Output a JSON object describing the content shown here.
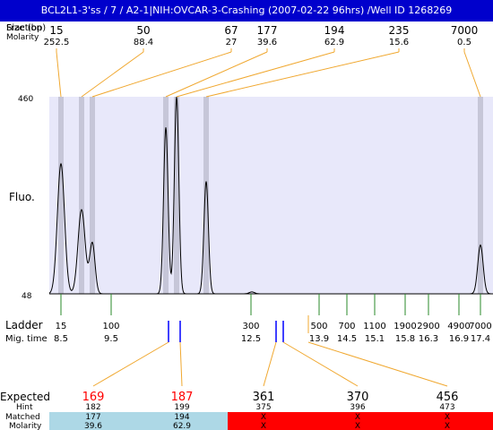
{
  "title": "BCL2L1-3'ss / 7 / A2-1|NIH:OVCAR-3-Crashing (2007-02-22 96hrs) /Well ID 1268269",
  "top_rows": {
    "label_1": "Fraction",
    "label_1b": "Size (bp)",
    "label_2": "Molarity"
  },
  "top_peaks": [
    {
      "size": "15",
      "molarity": "252.5"
    },
    {
      "size": "50",
      "molarity": "88.4"
    },
    {
      "size": "67",
      "molarity": "27"
    },
    {
      "size": "177",
      "molarity": "39.6"
    },
    {
      "size": "194",
      "molarity": "62.9"
    },
    {
      "size": "235",
      "molarity": "15.6"
    },
    {
      "size": "7000",
      "molarity": "0.5"
    }
  ],
  "y_axis": {
    "label": "Fluo.",
    "top": "460",
    "bottom": "48"
  },
  "ladder": {
    "label": "Ladder",
    "mig_label": "Mig. time",
    "items": [
      {
        "size": "15",
        "time": "8.5"
      },
      {
        "size": "100",
        "time": "9.5"
      },
      {
        "size": "300",
        "time": "12.5"
      },
      {
        "size": "500",
        "time": "13.9"
      },
      {
        "size": "700",
        "time": "14.5"
      },
      {
        "size": "1100",
        "time": "15.1"
      },
      {
        "size": "1900",
        "time": "15.8"
      },
      {
        "size": "2900",
        "time": "16.3"
      },
      {
        "size": "4900",
        "time": "16.9"
      },
      {
        "size": "7000",
        "time": "17.4"
      }
    ]
  },
  "expected": {
    "label": "Expected",
    "hint_label": "Hint",
    "matched_label": "Matched",
    "molarity_label": "Molarity",
    "items": [
      {
        "expected": "169",
        "hint": "182",
        "matched": "177",
        "molarity": "39.6",
        "status": "matched"
      },
      {
        "expected": "187",
        "hint": "199",
        "matched": "194",
        "molarity": "62.9",
        "status": "matched"
      },
      {
        "expected": "361",
        "hint": "375",
        "matched": "X",
        "molarity": "X",
        "status": "missing"
      },
      {
        "expected": "370",
        "hint": "396",
        "matched": "X",
        "molarity": "X",
        "status": "missing"
      },
      {
        "expected": "456",
        "hint": "473",
        "matched": "X",
        "molarity": "X",
        "status": "missing"
      }
    ]
  },
  "colors": {
    "title_bg": "#0000cc",
    "plot_bg": "#e8e8fa",
    "peak_band": "#c6c6d8",
    "orange": "#f0a830",
    "green": "#2a8a2a",
    "blue": "#0000ff",
    "red_text": "#ff0000",
    "matched_bg": "#add8e6",
    "missing_bg": "#ff0000"
  },
  "chart_data": {
    "type": "line",
    "title": "BCL2L1-3'ss / 7 / A2-1|NIH:OVCAR-3-Crashing (2007-02-22 96hrs) /Well ID 1268269",
    "xlabel": "",
    "ylabel": "Fluo.",
    "ylim": [
      48,
      460
    ],
    "peaks": [
      {
        "size_bp": 15,
        "molarity": 252.5,
        "height_fluo": 320
      },
      {
        "size_bp": 50,
        "molarity": 88.4,
        "height_fluo": 224
      },
      {
        "size_bp": 67,
        "molarity": 27,
        "height_fluo": 154
      },
      {
        "size_bp": 177,
        "molarity": 39.6,
        "height_fluo": 396
      },
      {
        "size_bp": 194,
        "molarity": 62.9,
        "height_fluo": 460
      },
      {
        "size_bp": 235,
        "molarity": 15.6,
        "height_fluo": 283
      },
      {
        "size_bp": 7000,
        "molarity": 0.5,
        "height_fluo": 150
      }
    ],
    "ladder_sizes_bp": [
      15,
      100,
      300,
      500,
      700,
      1100,
      1900,
      2900,
      4900,
      7000
    ],
    "ladder_mig_times": [
      8.5,
      9.5,
      12.5,
      13.9,
      14.5,
      15.1,
      15.8,
      16.3,
      16.9,
      17.4
    ],
    "expected_bp": [
      169,
      187,
      361,
      370,
      456
    ],
    "hint_bp": [
      182,
      199,
      375,
      396,
      473
    ],
    "matched_bp": [
      177,
      194,
      null,
      null,
      null
    ],
    "matched_molarity": [
      39.6,
      62.9,
      null,
      null,
      null
    ],
    "grid": false,
    "legend": "none"
  }
}
